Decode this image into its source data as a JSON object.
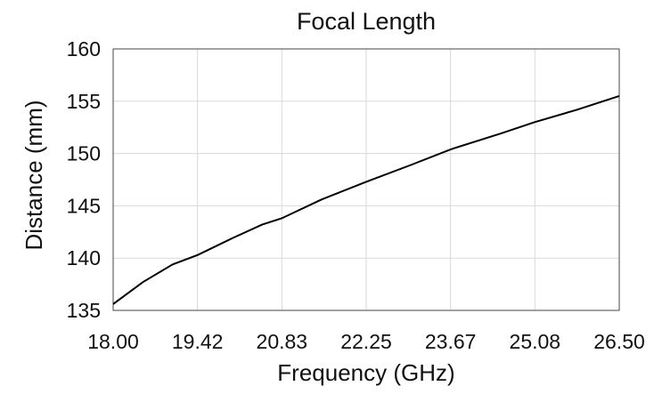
{
  "chart_data": {
    "type": "line",
    "title": "Focal Length",
    "xlabel": "Frequency (GHz)",
    "ylabel": "Distance (mm)",
    "xlim": [
      18.0,
      26.5
    ],
    "ylim": [
      135,
      160
    ],
    "x_ticks": [
      "18.00",
      "19.42",
      "20.83",
      "22.25",
      "23.67",
      "25.08",
      "26.50"
    ],
    "y_ticks": [
      "135",
      "140",
      "145",
      "150",
      "155",
      "160"
    ],
    "grid": true,
    "series": [
      {
        "x": [
          18.0,
          18.5,
          19.0,
          19.42,
          20.0,
          20.5,
          20.83,
          21.5,
          22.25,
          23.0,
          23.67,
          24.5,
          25.08,
          25.8,
          26.5
        ],
        "y": [
          135.6,
          137.7,
          139.4,
          140.3,
          141.9,
          143.2,
          143.8,
          145.6,
          147.3,
          148.9,
          150.4,
          151.9,
          153.0,
          154.2,
          155.5
        ],
        "color": "#000000"
      }
    ]
  }
}
